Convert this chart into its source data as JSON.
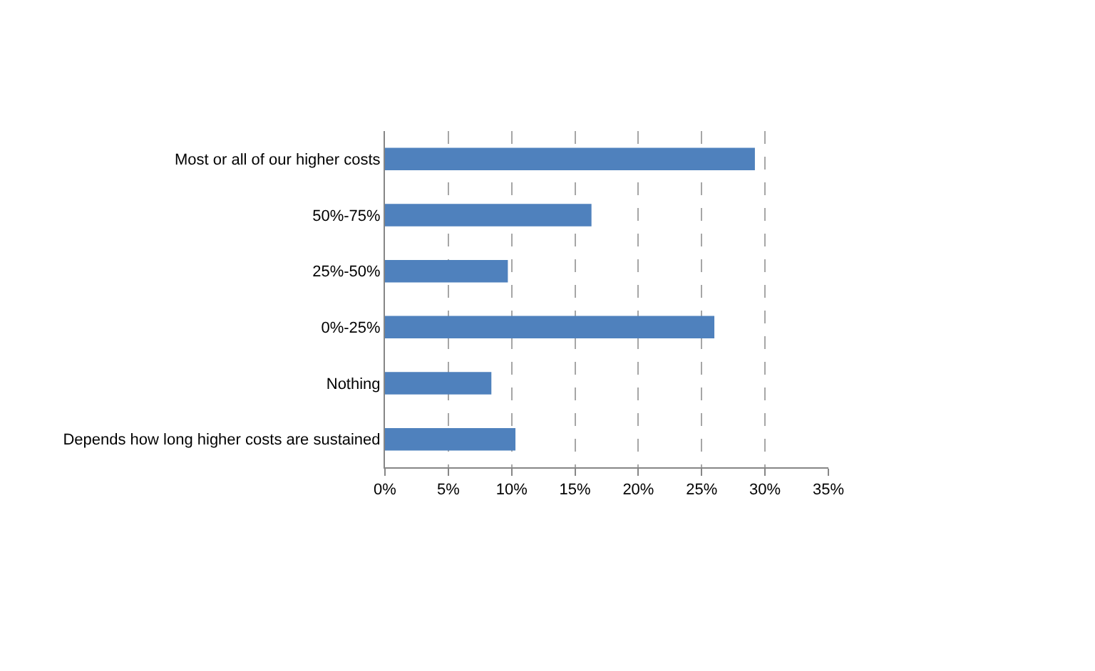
{
  "chart_data": {
    "type": "bar",
    "orientation": "horizontal",
    "categories": [
      "Most or all of our higher costs",
      "50%-75%",
      "25%-50%",
      "0%-25%",
      "Nothing",
      "Depends how long higher costs are sustained"
    ],
    "values": [
      29.2,
      16.3,
      9.7,
      26.0,
      8.4,
      10.3
    ],
    "color": "#4f81bd",
    "xlim": [
      0,
      35
    ],
    "xticks": [
      {
        "value": 0,
        "label": "0%"
      },
      {
        "value": 5,
        "label": "5%"
      },
      {
        "value": 10,
        "label": "10%"
      },
      {
        "value": 15,
        "label": "15%"
      },
      {
        "value": 20,
        "label": "20%"
      },
      {
        "value": 25,
        "label": "25%"
      },
      {
        "value": 30,
        "label": "30%"
      },
      {
        "value": 35,
        "label": "35%"
      }
    ],
    "grid": "x"
  }
}
